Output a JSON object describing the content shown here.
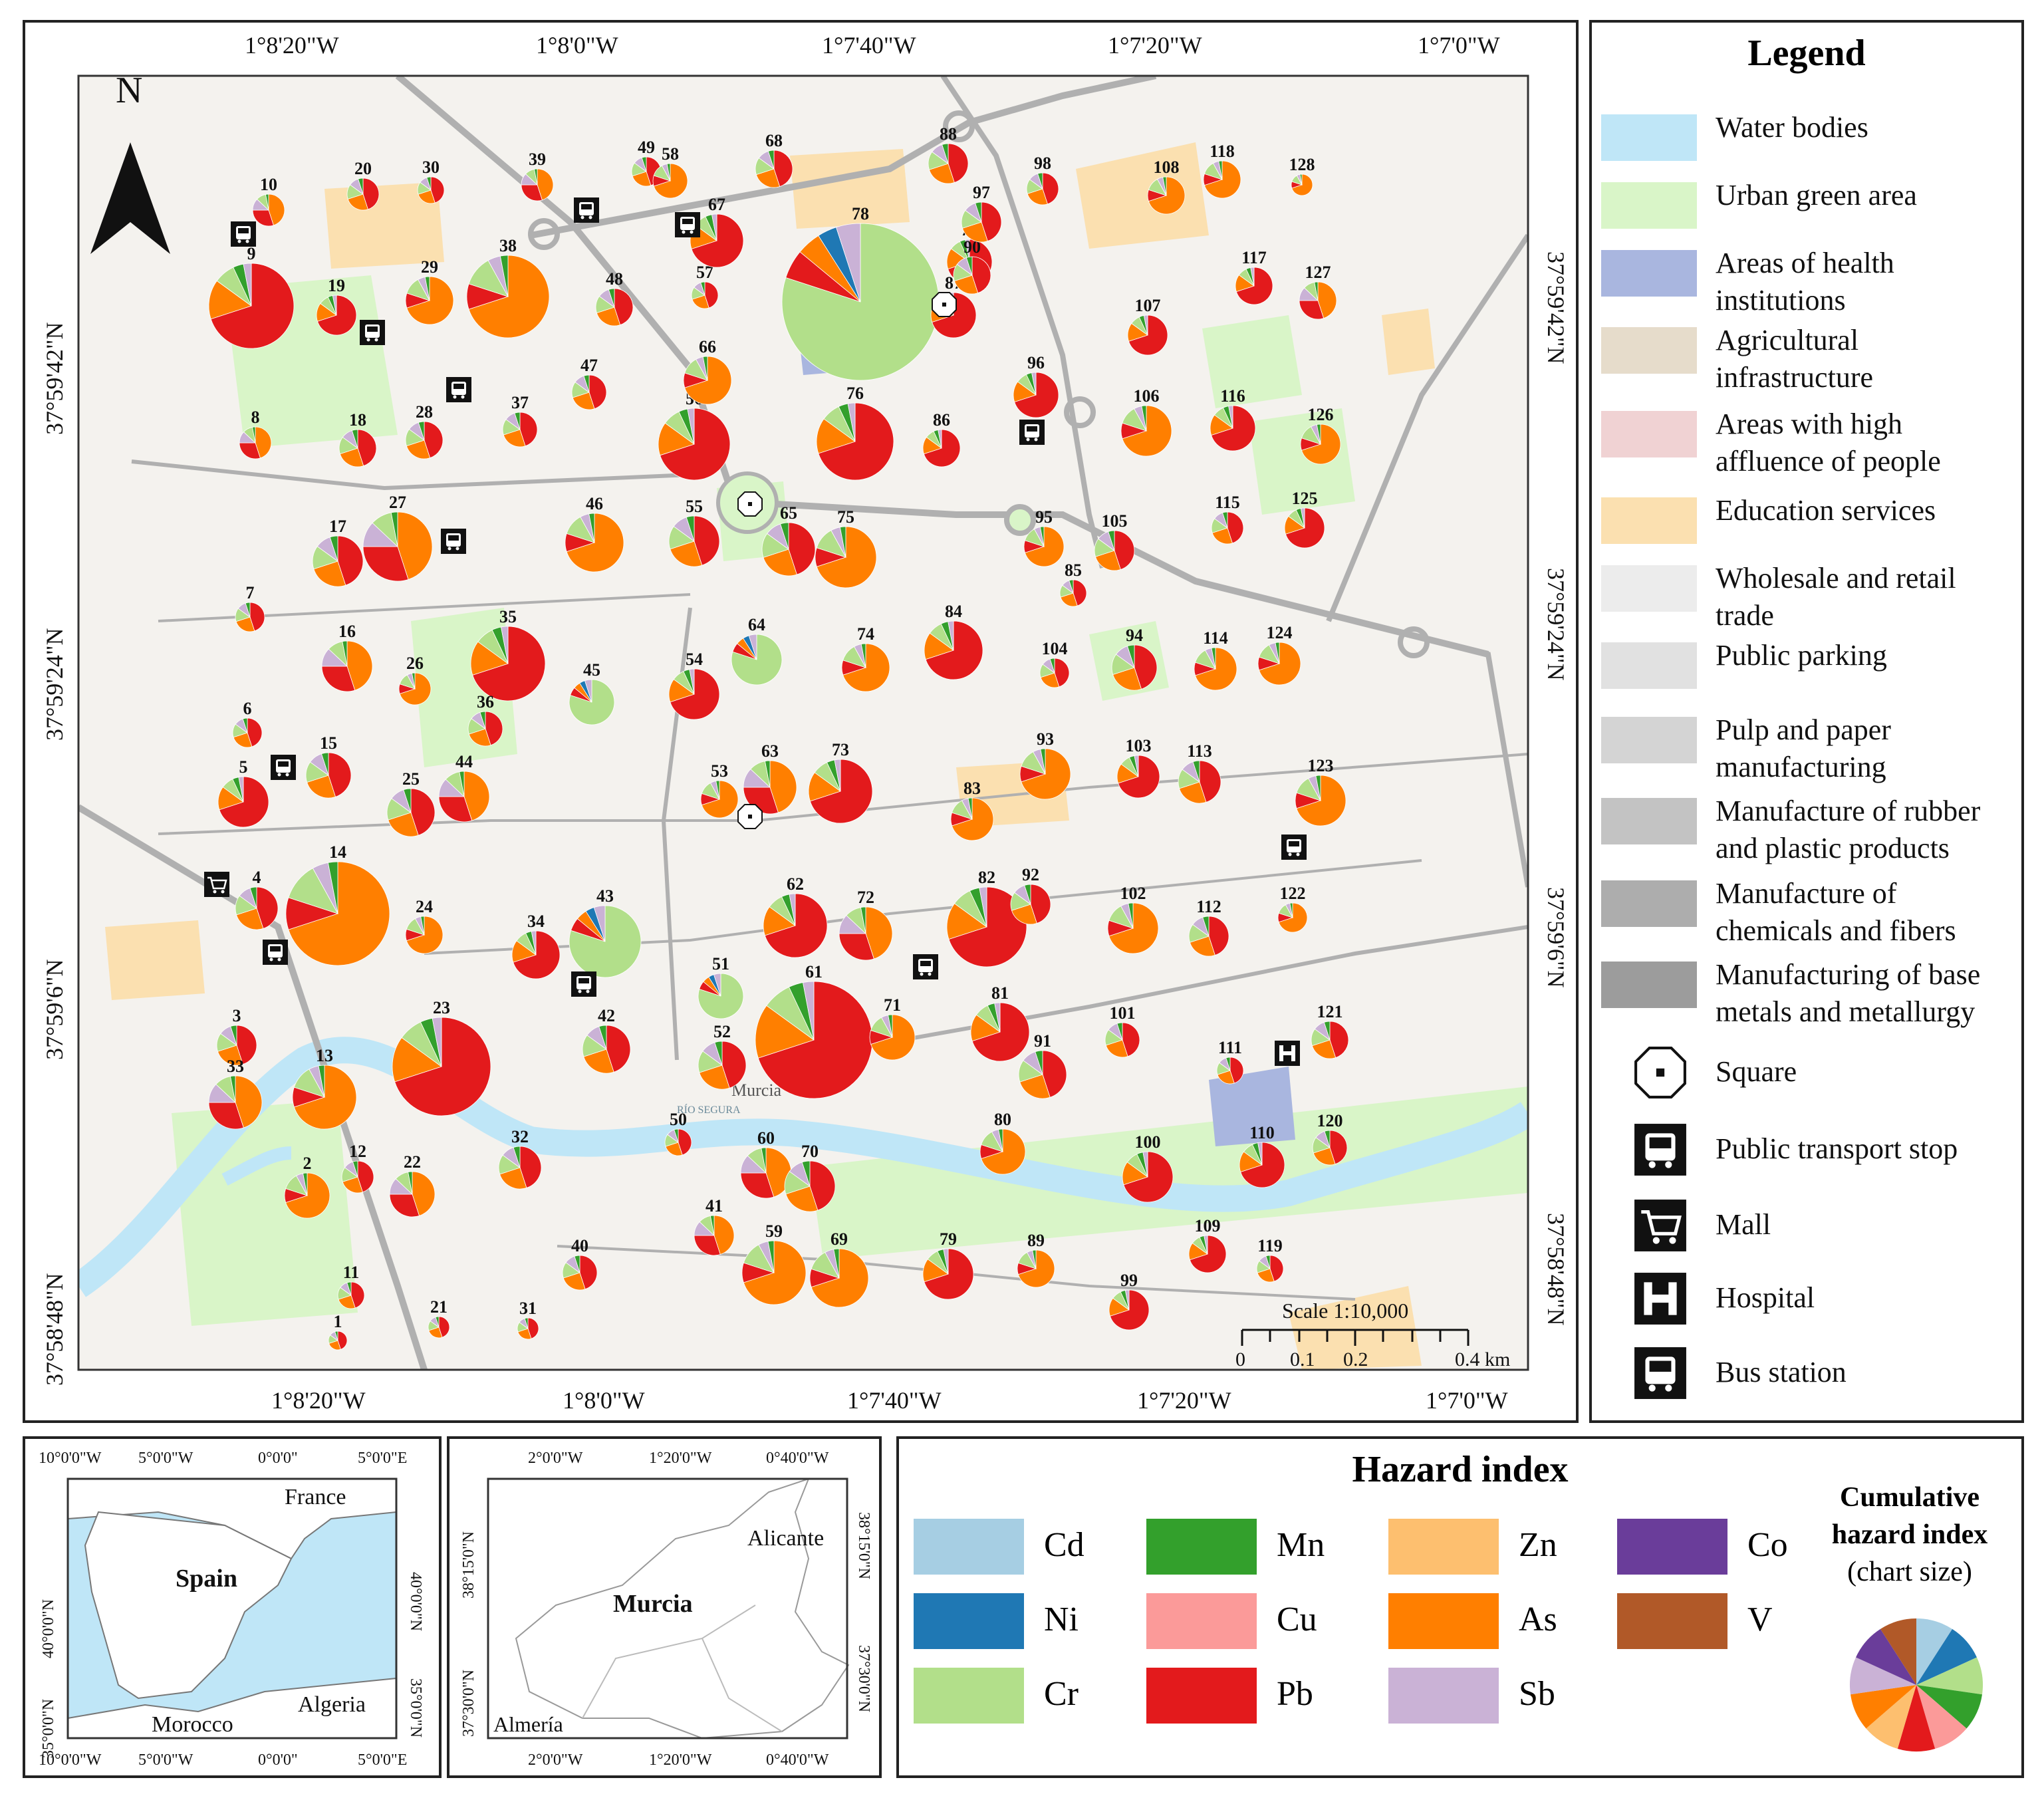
{
  "map": {
    "north": "N",
    "top_longitudes": [
      "1°8'20\"W",
      "1°8'0\"W",
      "1°7'40\"W",
      "1°7'20\"W",
      "1°7'0\"W"
    ],
    "bottom_longitudes": [
      "1°8'20\"W",
      "1°8'0\"W",
      "1°7'40\"W",
      "1°7'20\"W",
      "1°7'0\"W"
    ],
    "left_latitudes": [
      "37°59'42\"N",
      "37°59'24\"N",
      "37°59'6\"N",
      "37°58'48\"N"
    ],
    "right_latitudes": [
      "37°59'42\"N",
      "37°59'24\"N",
      "37°59'6\"N",
      "37°58'48\"N"
    ],
    "scale_label": "Scale 1:10,000",
    "scale_ticks": [
      "0",
      "0.1",
      "0.2",
      "0.4 km"
    ],
    "city_label": "Murcia",
    "river_label": "RÍO SEGURA"
  },
  "legend": {
    "title": "Legend",
    "items": [
      {
        "label": "Water bodies",
        "color": "#bfe6f7"
      },
      {
        "label": "Urban green area",
        "color": "#d9f5c8"
      },
      {
        "label": "Areas of health institutions",
        "color": "#a9b6df"
      },
      {
        "label": "Agricultural infrastructure",
        "color": "#e6dccb"
      },
      {
        "label": "Areas with high affluence of people",
        "color": "#f0d2d3"
      },
      {
        "label": "Education services",
        "color": "#fbe0b0"
      },
      {
        "label": "Wholesale and retail trade",
        "color": "#ececec"
      },
      {
        "label": "Public parking",
        "color": "#e1e1e1"
      },
      {
        "label": "Pulp and paper manufacturing",
        "color": "#d4d4d4"
      },
      {
        "label": "Manufacture of rubber and plastic products",
        "color": "#c3c3c3"
      },
      {
        "label": "Manufacture of chemicals and fibers",
        "color": "#adadad"
      },
      {
        "label": "Manufacturing of base metals and metallurgy",
        "color": "#9c9c9c"
      }
    ],
    "symbols": [
      {
        "label": "Square",
        "icon": "square-plaza-icon"
      },
      {
        "label": "Public transport stop",
        "icon": "bus-stop-icon"
      },
      {
        "label": "Mall",
        "icon": "cart-icon"
      },
      {
        "label": "Hospital",
        "icon": "hospital-icon"
      },
      {
        "label": "Bus station",
        "icon": "bus-station-icon"
      }
    ]
  },
  "inset_spain": {
    "top_lons": [
      "10°0'0\"W",
      "5°0'0\"W",
      "0°0'0\"",
      "5°0'0\"E"
    ],
    "bottom_lons": [
      "10°0'0\"W",
      "5°0'0\"W",
      "0°0'0\"",
      "5°0'0\"E"
    ],
    "lats": [
      "40°0'0\"N",
      "35°0'0\"N"
    ],
    "labels": {
      "france": "France",
      "spain": "Spain",
      "morocco": "Morocco",
      "algeria": "Algeria"
    }
  },
  "inset_murcia": {
    "top_lons": [
      "2°0'0\"W",
      "1°20'0\"W",
      "0°40'0\"W"
    ],
    "bottom_lons": [
      "2°0'0\"W",
      "1°20'0\"W",
      "0°40'0\"W"
    ],
    "lats": [
      "38°15'0\"N",
      "37°30'0\"N"
    ],
    "labels": {
      "alicante": "Alicante",
      "murcia": "Murcia",
      "almeria": "Almería"
    }
  },
  "hazard": {
    "title": "Hazard index",
    "components": [
      {
        "label": "Cd",
        "color": "#a6cee3"
      },
      {
        "label": "Ni",
        "color": "#1f78b4"
      },
      {
        "label": "Cr",
        "color": "#b2df8a"
      },
      {
        "label": "Mn",
        "color": "#33a02c"
      },
      {
        "label": "Cu",
        "color": "#fb9a99"
      },
      {
        "label": "Pb",
        "color": "#e31a1c"
      },
      {
        "label": "Zn",
        "color": "#fdbf6f"
      },
      {
        "label": "As",
        "color": "#ff7f00"
      },
      {
        "label": "Sb",
        "color": "#cab2d6"
      },
      {
        "label": "Co",
        "color": "#6a3d9a"
      },
      {
        "label": "V",
        "color": "#b15928"
      }
    ],
    "cumulative_title_lines": [
      "Cumulative",
      "hazard index",
      "(chart size)"
    ]
  }
}
